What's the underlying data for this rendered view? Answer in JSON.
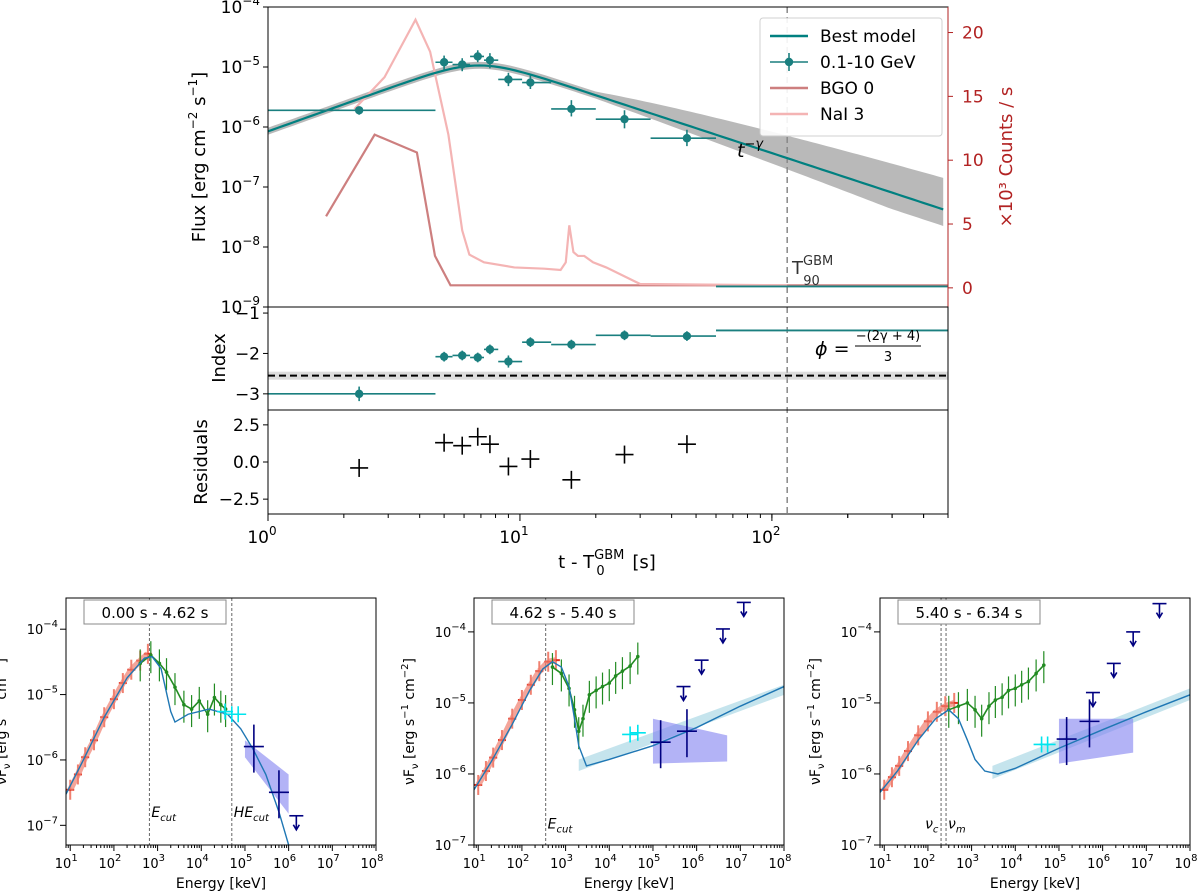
{
  "chart_data": [
    {
      "id": "lightcurve",
      "type": "line",
      "xscale": "log",
      "xlim": [
        1,
        500
      ],
      "ylim": [
        1e-09,
        0.0001
      ],
      "ylabel": "Flux [erg cm$^{-2}$ s$^{-1}$]",
      "y2label": "×10³ Counts / s",
      "y2lim": [
        -1.5,
        22
      ],
      "y2ticks": [
        "0",
        "5",
        "10",
        "15",
        "20"
      ],
      "legend": {
        "position": "top-right",
        "entries": [
          "Best model",
          "0.1-10 GeV",
          "BGO 0",
          "NaI 3"
        ]
      },
      "colors": {
        "model": "#008080",
        "data": "#1a7f7f",
        "band": "#808080",
        "bgo": "#cd7f7f",
        "nai": "#f4b4b4",
        "y2": "#b22222",
        "t90": "#888888"
      },
      "annotation_tgamma": "t",
      "annotation_tgamma_sup": "−γ",
      "t90_label": "T",
      "t90_sup": "GBM",
      "t90_sub": "90",
      "t90_value": 115,
      "flux_points": [
        {
          "t": 2.3,
          "t_lo": 1.0,
          "t_hi": 4.62,
          "f": 1.9e-06,
          "f_lo": 1.6e-06,
          "f_hi": 2.2e-06
        },
        {
          "t": 5.0,
          "t_lo": 4.62,
          "t_hi": 5.4,
          "f": 1.2e-05,
          "f_lo": 9e-06,
          "f_hi": 1.55e-05
        },
        {
          "t": 5.9,
          "t_lo": 5.4,
          "t_hi": 6.34,
          "f": 1.1e-05,
          "f_lo": 8.5e-06,
          "f_hi": 1.4e-05
        },
        {
          "t": 6.8,
          "t_lo": 6.34,
          "t_hi": 7.2,
          "f": 1.5e-05,
          "f_lo": 1.2e-05,
          "f_hi": 1.9e-05
        },
        {
          "t": 7.6,
          "t_lo": 7.2,
          "t_hi": 8.2,
          "f": 1.3e-05,
          "f_lo": 9.5e-06,
          "f_hi": 1.7e-05
        },
        {
          "t": 9.0,
          "t_lo": 8.2,
          "t_hi": 10.2,
          "f": 6.2e-06,
          "f_lo": 4.8e-06,
          "f_hi": 8e-06
        },
        {
          "t": 11.0,
          "t_lo": 10.2,
          "t_hi": 13.3,
          "f": 5.5e-06,
          "f_lo": 4.3e-06,
          "f_hi": 7.2e-06
        },
        {
          "t": 16.0,
          "t_lo": 13.3,
          "t_hi": 20.0,
          "f": 2e-06,
          "f_lo": 1.5e-06,
          "f_hi": 2.8e-06
        },
        {
          "t": 26.0,
          "t_lo": 20.0,
          "t_hi": 33.0,
          "f": 1.35e-06,
          "f_lo": 9.5e-07,
          "f_hi": 1.9e-06
        },
        {
          "t": 46.0,
          "t_lo": 33.0,
          "t_hi": 60.0,
          "f": 6.5e-07,
          "f_lo": 4.8e-07,
          "f_hi": 9e-07
        }
      ],
      "upper_limit_bin": {
        "t_lo": 60,
        "t_hi": 500,
        "f": 2.2e-09
      },
      "model": {
        "t_peak": 6.8,
        "f_peak": 7.5e-06,
        "rise_index": 1.5,
        "gamma": 1.38,
        "band_low": 0.8,
        "band_high_min": 0.75,
        "band_high_max": 2.1
      },
      "bgo_curve": [
        [
          1.7,
          5.6
        ],
        [
          2.65,
          12.0
        ],
        [
          3.9,
          10.6
        ],
        [
          4.6,
          2.5
        ],
        [
          5.3,
          0.2
        ],
        [
          500,
          0.2
        ]
      ],
      "nai_curve": [
        [
          2.2,
          14.0
        ],
        [
          2.9,
          16.5
        ],
        [
          3.85,
          21.0
        ],
        [
          4.4,
          18.5
        ],
        [
          5.2,
          12.0
        ],
        [
          5.9,
          4.5
        ],
        [
          6.3,
          2.6
        ],
        [
          7.2,
          2.0
        ],
        [
          9.5,
          1.6
        ],
        [
          12.5,
          1.5
        ],
        [
          14.5,
          1.4
        ],
        [
          15.2,
          2.0
        ],
        [
          15.7,
          4.9
        ],
        [
          16.3,
          2.8
        ],
        [
          17.0,
          2.5
        ],
        [
          18.0,
          2.5
        ],
        [
          19.5,
          2.0
        ],
        [
          22.0,
          1.6
        ],
        [
          30.0,
          0.3
        ],
        [
          115.0,
          0.2
        ]
      ]
    },
    {
      "id": "index",
      "type": "scatter",
      "xscale": "log",
      "ylabel": "Index",
      "ylim": [
        -3.4,
        -0.85
      ],
      "yticks": [
        "−3",
        "−2",
        "−1"
      ],
      "phi_label": "ϕ =",
      "phi_num": "−(2γ + 4)",
      "phi_den": "3",
      "phi_value": -2.55,
      "points": [
        {
          "t": 2.3,
          "t_lo": 1.0,
          "t_hi": 4.62,
          "v": -3.0,
          "err": 0.18
        },
        {
          "t": 5.0,
          "t_lo": 4.62,
          "t_hi": 5.4,
          "v": -2.08,
          "err": 0.12
        },
        {
          "t": 5.9,
          "t_lo": 5.4,
          "t_hi": 6.34,
          "v": -2.05,
          "err": 0.12
        },
        {
          "t": 6.8,
          "t_lo": 6.34,
          "t_hi": 7.2,
          "v": -2.1,
          "err": 0.12
        },
        {
          "t": 7.6,
          "t_lo": 7.2,
          "t_hi": 8.2,
          "v": -1.9,
          "err": 0.12
        },
        {
          "t": 9.0,
          "t_lo": 8.2,
          "t_hi": 10.2,
          "v": -2.2,
          "err": 0.15
        },
        {
          "t": 11.0,
          "t_lo": 10.2,
          "t_hi": 13.3,
          "v": -1.72,
          "err": 0.12
        },
        {
          "t": 16.0,
          "t_lo": 13.3,
          "t_hi": 20.0,
          "v": -1.78,
          "err": 0.12
        },
        {
          "t": 26.0,
          "t_lo": 20.0,
          "t_hi": 33.0,
          "v": -1.55,
          "err": 0.12
        },
        {
          "t": 46.0,
          "t_lo": 33.0,
          "t_hi": 60.0,
          "v": -1.57,
          "err": 0.12
        }
      ],
      "limit_line": {
        "t_lo": 60,
        "t_hi": 500,
        "v": -1.43
      }
    },
    {
      "id": "residuals",
      "type": "scatter",
      "xscale": "log",
      "ylabel": "Residuals",
      "xlabel": "t - T",
      "xlabel_sup": "GBM",
      "xlabel_sub": "0",
      "xlabel_unit": "[s]",
      "ylim": [
        -3.5,
        3.5
      ],
      "yticks": [
        "−2.5",
        "0.0",
        "2.5"
      ],
      "xticks": [
        "1",
        "1",
        "1"
      ],
      "xtick_exps": [
        "0",
        "1",
        "2"
      ],
      "points": [
        {
          "t": 2.3,
          "v": -0.4
        },
        {
          "t": 5.0,
          "v": 1.3
        },
        {
          "t": 5.9,
          "v": 1.1
        },
        {
          "t": 6.8,
          "v": 1.7
        },
        {
          "t": 7.6,
          "v": 1.2
        },
        {
          "t": 9.0,
          "v": -0.3
        },
        {
          "t": 11.0,
          "v": 0.2
        },
        {
          "t": 16.0,
          "v": -1.2
        },
        {
          "t": 26.0,
          "v": 0.5
        },
        {
          "t": 46.0,
          "v": 1.2
        }
      ]
    },
    {
      "id": "sed1",
      "type": "scatter",
      "xscale": "log",
      "yscale": "log",
      "interval": "0.00 s - 4.62 s",
      "xlabel": "Energy [keV]",
      "ylabel": "νF",
      "ylabel_sub": "ν",
      "ylabel_unit": "[erg s",
      "ylabel_unit_exp": "−1",
      "ylabel_unit_tail": " cm",
      "ylabel_unit_exp2": "−2",
      "xlim": [
        8,
        100000000.0
      ],
      "ylim": [
        5e-08,
        0.0003
      ],
      "vlines": [
        {
          "x": 650,
          "label": "E",
          "sub": "cut",
          "y": 1.6e-07
        },
        {
          "x": 50000,
          "label": "HE",
          "sub": "cut",
          "y": 1.6e-07
        }
      ],
      "model": [
        [
          8,
          3e-07
        ],
        [
          20,
          1e-06
        ],
        [
          60,
          4.5e-06
        ],
        [
          200,
          1.8e-05
        ],
        [
          500,
          3.6e-05
        ],
        [
          750,
          3.8e-05
        ],
        [
          1200,
          2.5e-05
        ],
        [
          2000,
          5.5e-06
        ],
        [
          2500,
          3.8e-06
        ],
        [
          5000,
          5e-06
        ],
        [
          15000,
          6e-06
        ],
        [
          40000,
          5e-06
        ],
        [
          80000,
          3e-06
        ],
        [
          150000,
          1.5e-06
        ],
        [
          300000,
          6e-07
        ],
        [
          600000,
          1.6e-07
        ],
        [
          1000000,
          5e-08
        ]
      ],
      "nai_points": [
        [
          10,
          3.5e-07
        ],
        [
          15,
          6e-07
        ],
        [
          22,
          1.1e-06
        ],
        [
          35,
          2e-06
        ],
        [
          60,
          4.5e-06
        ],
        [
          100,
          8.5e-06
        ],
        [
          160,
          1.5e-05
        ],
        [
          250,
          2.4e-05
        ],
        [
          400,
          3.3e-05
        ],
        [
          600,
          4.2e-05
        ]
      ],
      "bgo_points": [
        [
          400,
          3e-05
        ],
        [
          700,
          4e-05
        ],
        [
          1100,
          3e-05
        ],
        [
          1600,
          2.2e-05
        ],
        [
          2500,
          1.3e-05
        ],
        [
          4000,
          7e-06
        ],
        [
          6000,
          6e-06
        ],
        [
          9000,
          8e-06
        ],
        [
          14000,
          5e-06
        ],
        [
          20000,
          9e-06
        ],
        [
          28000,
          7e-06
        ],
        [
          36000,
          6e-06
        ]
      ],
      "lle_points": [
        [
          35000,
          5.5e-06
        ],
        [
          50000,
          5e-06
        ],
        [
          70000,
          5e-06
        ]
      ],
      "lat_points": [
        [
          160000,
          1.6e-06,
          200000
        ],
        [
          600000,
          3.2e-07,
          400000
        ]
      ],
      "lat_uls": [
        [
          1500000,
          1.4e-07
        ]
      ],
      "band_poly": [
        [
          100000,
          2e-06
        ],
        [
          1000000,
          6e-07
        ],
        [
          1000000,
          1.5e-07
        ],
        [
          100000,
          1.1e-06
        ]
      ]
    },
    {
      "id": "sed2",
      "type": "scatter",
      "xscale": "log",
      "yscale": "log",
      "interval": "4.62 s - 5.40 s",
      "xlabel": "Energy [keV]",
      "ylabel": "νF",
      "ylabel_sub": "ν",
      "ylabel_unit": "[erg s",
      "ylabel_unit_exp": "−1",
      "ylabel_unit_tail": " cm",
      "ylabel_unit_exp2": "−2",
      "xlim": [
        8,
        100000000.0
      ],
      "ylim": [
        1e-07,
        0.0003
      ],
      "vlines": [
        {
          "x": 350,
          "label": "E",
          "sub": "cut",
          "y": 2e-07
        }
      ],
      "model": [
        [
          8,
          6e-07
        ],
        [
          20,
          1.5e-06
        ],
        [
          60,
          5e-06
        ],
        [
          150,
          1.5e-05
        ],
        [
          300,
          3e-05
        ],
        [
          500,
          3.8e-05
        ],
        [
          800,
          3.2e-05
        ],
        [
          1200,
          1.7e-05
        ],
        [
          1600,
          6e-06
        ],
        [
          2000,
          2.5e-06
        ],
        [
          3000,
          1.3e-06
        ],
        [
          10000,
          1.6e-06
        ],
        [
          100000,
          2.5e-06
        ],
        [
          1000000,
          4.5e-06
        ],
        [
          10000000,
          9e-06
        ],
        [
          100000000,
          1.7e-05
        ]
      ],
      "nai_points": [
        [
          10,
          7e-07
        ],
        [
          15,
          1.1e-06
        ],
        [
          22,
          1.7e-06
        ],
        [
          35,
          3e-06
        ],
        [
          60,
          6e-06
        ],
        [
          100,
          1.1e-05
        ],
        [
          160,
          1.8e-05
        ],
        [
          250,
          2.8e-05
        ],
        [
          400,
          3.8e-05
        ],
        [
          600,
          4e-05
        ]
      ],
      "bgo_points": [
        [
          500,
          3.2e-05
        ],
        [
          800,
          2.6e-05
        ],
        [
          1200,
          1.6e-05
        ],
        [
          1600,
          8e-06
        ],
        [
          2000,
          4e-06
        ],
        [
          2500,
          6e-06
        ],
        [
          3500,
          1.3e-05
        ],
        [
          5000,
          1.5e-05
        ],
        [
          7000,
          1.7e-05
        ],
        [
          10000,
          1.9e-05
        ],
        [
          14000,
          2.4e-05
        ],
        [
          20000,
          2.8e-05
        ],
        [
          30000,
          3.3e-05
        ],
        [
          45000,
          4.5e-05
        ]
      ],
      "lle_points": [
        [
          30000,
          3.6e-06
        ],
        [
          45000,
          3.8e-06
        ]
      ],
      "lat_points": [
        [
          150000,
          2.8e-06,
          200000
        ],
        [
          600000,
          4e-06,
          400000
        ]
      ],
      "lat_uls": [
        [
          500000,
          1.7e-05
        ],
        [
          1300000,
          4e-05
        ],
        [
          4000000,
          0.00011
        ],
        [
          12000000,
          0.00026
        ]
      ],
      "band_poly": [
        [
          100000,
          6e-06
        ],
        [
          5000000,
          3.5e-06
        ],
        [
          5000000,
          1.5e-06
        ],
        [
          100000,
          1.4e-06
        ]
      ],
      "cyan_band": [
        [
          2000,
          1.6e-06
        ],
        [
          100000000,
          1.8e-05
        ],
        [
          100000000,
          1.3e-05
        ],
        [
          2000,
          1.1e-06
        ]
      ]
    },
    {
      "id": "sed3",
      "type": "scatter",
      "xscale": "log",
      "yscale": "log",
      "interval": "5.40 s - 6.34 s",
      "xlabel": "Energy [keV]",
      "ylabel": "νF",
      "ylabel_sub": "ν",
      "ylabel_unit": "[erg s",
      "ylabel_unit_exp": "−1",
      "ylabel_unit_tail": " cm",
      "ylabel_unit_exp2": "−2",
      "xlim": [
        8,
        100000000.0
      ],
      "ylim": [
        1e-07,
        0.0003
      ],
      "vlines": [
        {
          "x": 200,
          "label": "ν",
          "sub": "c",
          "y": 2e-07
        },
        {
          "x": 260,
          "label": "ν",
          "sub": "m",
          "y": 2e-07
        }
      ],
      "model": [
        [
          8,
          5.5e-07
        ],
        [
          20,
          1.1e-06
        ],
        [
          60,
          3e-06
        ],
        [
          150,
          6e-06
        ],
        [
          300,
          8e-06
        ],
        [
          500,
          6e-06
        ],
        [
          800,
          3e-06
        ],
        [
          1200,
          1.6e-06
        ],
        [
          2000,
          1.1e-06
        ],
        [
          4000,
          1e-06
        ],
        [
          10000,
          1.2e-06
        ],
        [
          100000,
          2.3e-06
        ],
        [
          1000000,
          4.2e-06
        ],
        [
          10000000,
          7.5e-06
        ],
        [
          100000000,
          1.3e-05
        ]
      ],
      "nai_points": [
        [
          10,
          6e-07
        ],
        [
          15,
          9e-07
        ],
        [
          22,
          1.3e-06
        ],
        [
          35,
          2.1e-06
        ],
        [
          60,
          3.5e-06
        ],
        [
          100,
          5.5e-06
        ],
        [
          160,
          7.5e-06
        ],
        [
          250,
          9e-06
        ],
        [
          400,
          1e-05
        ]
      ],
      "bgo_points": [
        [
          300,
          8e-06
        ],
        [
          500,
          9e-06
        ],
        [
          800,
          1e-05
        ],
        [
          1200,
          8e-06
        ],
        [
          1700,
          6e-06
        ],
        [
          2500,
          9e-06
        ],
        [
          3500,
          1.1e-05
        ],
        [
          5000,
          1.2e-05
        ],
        [
          7000,
          1.5e-05
        ],
        [
          10000,
          1.6e-05
        ],
        [
          14000,
          1.8e-05
        ],
        [
          20000,
          2e-05
        ],
        [
          30000,
          2.6e-05
        ],
        [
          45000,
          3.4e-05
        ]
      ],
      "lle_points": [
        [
          40000,
          2.6e-06
        ],
        [
          55000,
          2.6e-06
        ]
      ],
      "lat_points": [
        [
          150000,
          3.1e-06,
          200000
        ],
        [
          500000,
          5.5e-06,
          400000
        ]
      ],
      "lat_uls": [
        [
          600000,
          1.4e-05
        ],
        [
          1800000,
          3.6e-05
        ],
        [
          5000000,
          0.0001
        ],
        [
          20000000,
          0.00025
        ]
      ],
      "band_poly": [
        [
          100000,
          6e-06
        ],
        [
          5000000,
          6e-06
        ],
        [
          5000000,
          2e-06
        ],
        [
          100000,
          1.4e-06
        ]
      ],
      "cyan_band": [
        [
          3000,
          1.3e-06
        ],
        [
          100000000,
          1.6e-05
        ],
        [
          100000000,
          1.1e-05
        ],
        [
          3000,
          8.5e-07
        ]
      ]
    }
  ]
}
